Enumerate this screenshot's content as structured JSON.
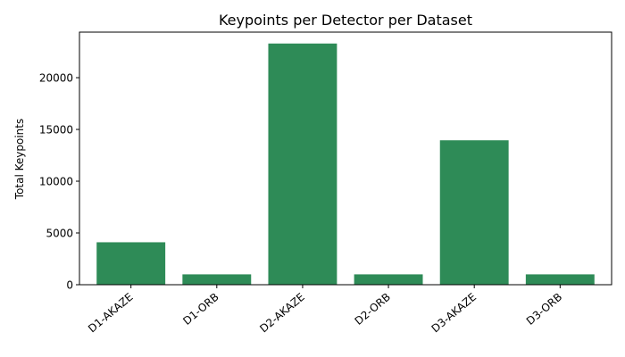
{
  "chart_data": {
    "type": "bar",
    "title": "Keypoints per Detector per Dataset",
    "xlabel": "",
    "ylabel": "Total Keypoints",
    "categories": [
      "D1-AKAZE",
      "D1-ORB",
      "D2-AKAZE",
      "D2-ORB",
      "D3-AKAZE",
      "D3-ORB"
    ],
    "values": [
      4100,
      1000,
      23300,
      1000,
      13950,
      1000
    ],
    "ylim": [
      0,
      24400
    ],
    "yticks": [
      0,
      5000,
      10000,
      15000,
      20000
    ],
    "ytick_labels": [
      "0",
      "5000",
      "10000",
      "15000",
      "20000"
    ],
    "bar_color": "#2e8b57",
    "grid": false,
    "legend": false
  }
}
